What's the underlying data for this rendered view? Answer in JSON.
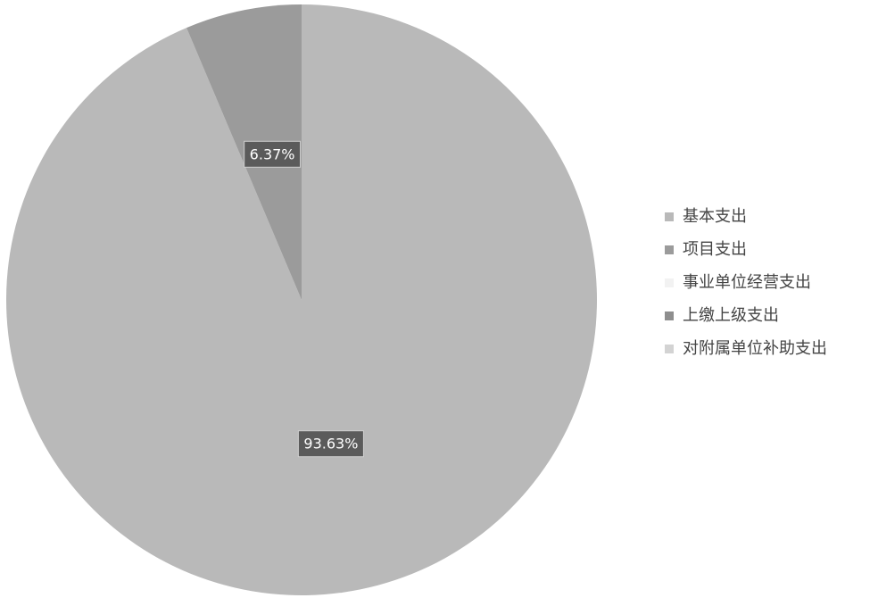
{
  "chart_data": {
    "type": "pie",
    "categories": [
      "基本支出",
      "项目支出",
      "事业单位经营支出",
      "上缴上级支出",
      "对附属单位补助支出"
    ],
    "values": [
      93.63,
      6.37,
      0,
      0,
      0
    ],
    "value_labels": [
      "93.63%",
      "6.37%",
      null,
      null,
      null
    ],
    "colors": [
      "#b9b9b9",
      "#9b9b9b",
      "#f2f2f2",
      "#8e8e8e",
      "#d3d3d3"
    ],
    "legend": "right"
  }
}
